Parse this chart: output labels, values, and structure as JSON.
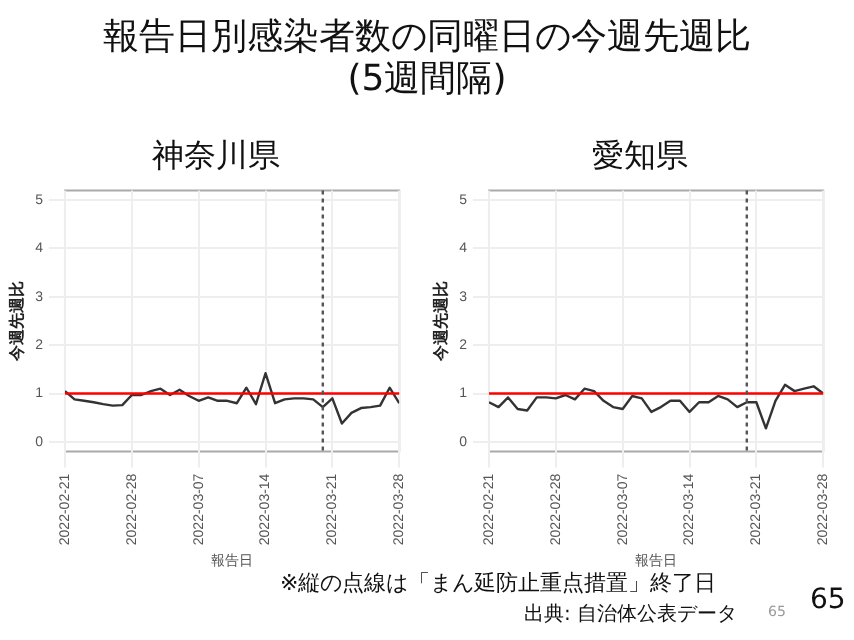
{
  "chart_data": [
    {
      "type": "other",
      "title": "報告日別感染者数の同曜日の今週先週比",
      "subtitle": "(5週間隔)",
      "annotations": [
        "※縦の点線は「まん延防止重点措置」終了日",
        "出典: 自治体公表データ",
        "65",
        "65"
      ]
    },
    {
      "type": "line",
      "title": "神奈川県",
      "xlabel": "報告日",
      "ylabel": "今週先週比",
      "x": [
        "2022-02-21",
        "2022-02-22",
        "2022-02-23",
        "2022-02-24",
        "2022-02-25",
        "2022-02-26",
        "2022-02-27",
        "2022-02-28",
        "2022-03-01",
        "2022-03-02",
        "2022-03-03",
        "2022-03-04",
        "2022-03-05",
        "2022-03-06",
        "2022-03-07",
        "2022-03-08",
        "2022-03-09",
        "2022-03-10",
        "2022-03-11",
        "2022-03-12",
        "2022-03-13",
        "2022-03-14",
        "2022-03-15",
        "2022-03-16",
        "2022-03-17",
        "2022-03-18",
        "2022-03-19",
        "2022-03-20",
        "2022-03-21",
        "2022-03-22",
        "2022-03-23",
        "2022-03-24",
        "2022-03-25",
        "2022-03-26",
        "2022-03-27",
        "2022-03-28"
      ],
      "series": [
        {
          "color": "#333333",
          "values": [
            1.05,
            0.88,
            0.85,
            0.82,
            0.78,
            0.75,
            0.76,
            0.97,
            0.97,
            1.05,
            1.1,
            0.97,
            1.08,
            0.95,
            0.85,
            0.92,
            0.85,
            0.85,
            0.8,
            1.12,
            0.78,
            1.42,
            0.8,
            0.88,
            0.9,
            0.9,
            0.88,
            0.72,
            0.9,
            0.38,
            0.6,
            0.7,
            0.72,
            0.75,
            1.12,
            0.8
          ]
        }
      ],
      "xlim": [
        "2022-02-21",
        "2022-03-28"
      ],
      "xticks": [
        "2022-02-21",
        "2022-02-28",
        "2022-03-07",
        "2022-03-14",
        "2022-03-21",
        "2022-03-28"
      ],
      "ylim": [
        -0.2,
        5.2
      ],
      "yticks": [
        0,
        1,
        2,
        3,
        4,
        5
      ],
      "grid": true,
      "legend": false,
      "marker": "none",
      "line_style": "solid",
      "ref_lines": [
        {
          "axis": "y",
          "value": 1,
          "color": "#ff0000",
          "line_style": "solid"
        },
        {
          "axis": "x",
          "value": "2022-03-20",
          "color": "#555555",
          "line_style": "dotted"
        }
      ]
    },
    {
      "type": "line",
      "title": "愛知県",
      "xlabel": "報告日",
      "ylabel": "今週先週比",
      "x": [
        "2022-02-21",
        "2022-02-22",
        "2022-02-23",
        "2022-02-24",
        "2022-02-25",
        "2022-02-26",
        "2022-02-27",
        "2022-02-28",
        "2022-03-01",
        "2022-03-02",
        "2022-03-03",
        "2022-03-04",
        "2022-03-05",
        "2022-03-06",
        "2022-03-07",
        "2022-03-08",
        "2022-03-09",
        "2022-03-10",
        "2022-03-11",
        "2022-03-12",
        "2022-03-13",
        "2022-03-14",
        "2022-03-15",
        "2022-03-16",
        "2022-03-17",
        "2022-03-18",
        "2022-03-19",
        "2022-03-20",
        "2022-03-21",
        "2022-03-22",
        "2022-03-23",
        "2022-03-24",
        "2022-03-25",
        "2022-03-26",
        "2022-03-27",
        "2022-03-28"
      ],
      "series": [
        {
          "color": "#333333",
          "values": [
            0.82,
            0.72,
            0.92,
            0.68,
            0.65,
            0.92,
            0.92,
            0.9,
            0.97,
            0.88,
            1.1,
            1.05,
            0.85,
            0.72,
            0.68,
            0.95,
            0.9,
            0.62,
            0.72,
            0.85,
            0.85,
            0.62,
            0.82,
            0.82,
            0.95,
            0.88,
            0.72,
            0.82,
            0.82,
            0.28,
            0.85,
            1.18,
            1.05,
            1.1,
            1.15,
            1.0
          ]
        }
      ],
      "xlim": [
        "2022-02-21",
        "2022-03-28"
      ],
      "xticks": [
        "2022-02-21",
        "2022-02-28",
        "2022-03-07",
        "2022-03-14",
        "2022-03-21",
        "2022-03-28"
      ],
      "ylim": [
        -0.2,
        5.2
      ],
      "yticks": [
        0,
        1,
        2,
        3,
        4,
        5
      ],
      "grid": true,
      "legend": false,
      "marker": "none",
      "line_style": "solid",
      "ref_lines": [
        {
          "axis": "y",
          "value": 1,
          "color": "#ff0000",
          "line_style": "solid"
        },
        {
          "axis": "x",
          "value": "2022-03-20",
          "color": "#555555",
          "line_style": "dotted"
        }
      ]
    }
  ]
}
